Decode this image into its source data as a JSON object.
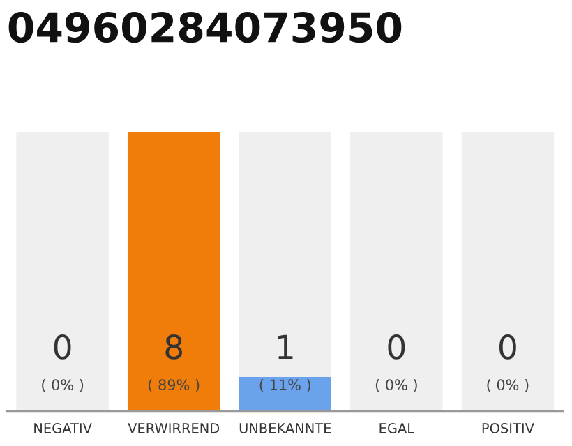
{
  "chart_data": {
    "type": "bar",
    "title": "04960284073950",
    "stacked": true,
    "categories": [
      "NEGATIV",
      "VERWIRREND",
      "UNBEKANNTE",
      "EGAL",
      "POSITIV"
    ],
    "series": [
      {
        "colors": [
          "#f07d0a",
          "#f07d0a",
          "#6aa2ec",
          "#f07d0a",
          "#f07d0a"
        ],
        "values": [
          0,
          89,
          11,
          0,
          0
        ],
        "value_labels": [
          null,
          "( 89% )",
          "( 11% )",
          null,
          null
        ]
      },
      {
        "color": "#efefef",
        "values": [
          89,
          0,
          78,
          89,
          89
        ]
      }
    ],
    "ylim": [
      0,
      89
    ],
    "annotations": [
      "0",
      "8",
      "1",
      "0",
      "0",
      "( 0% )",
      "( 0% )",
      "( 0% )"
    ],
    "tick_labels": "x",
    "grid": false,
    "legend": false
  }
}
